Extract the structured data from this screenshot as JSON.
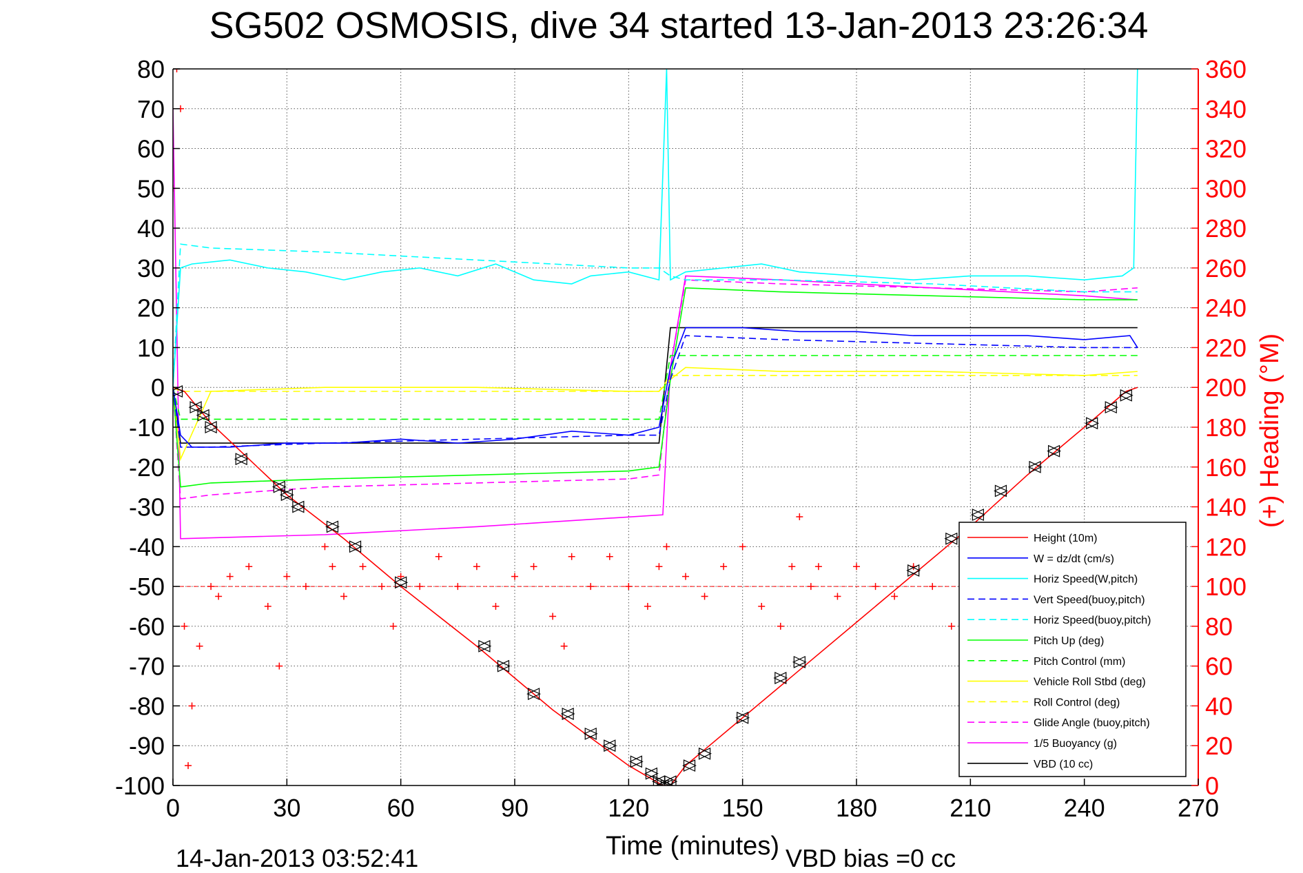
{
  "chart_data": {
    "type": "line",
    "title": "SG502 OSMOSIS, dive 34 started 13-Jan-2013 23:26:34",
    "xlabel": "Time (minutes)",
    "ylabel": "",
    "ylabel_right": "(+) Heading (°M)",
    "footer_left": "14-Jan-2013 03:52:41",
    "footer_right": "VBD bias =0 cc",
    "xlim": [
      0,
      270
    ],
    "ylim": [
      -100,
      80
    ],
    "ylim_right": [
      0,
      360
    ],
    "xticks": [
      "0",
      "30",
      "60",
      "90",
      "120",
      "150",
      "180",
      "210",
      "240",
      "270"
    ],
    "yticks": [
      "-100",
      "-90",
      "-80",
      "-70",
      "-60",
      "-50",
      "-40",
      "-30",
      "-20",
      "-10",
      "0",
      "10",
      "20",
      "30",
      "40",
      "50",
      "60",
      "70",
      "80"
    ],
    "yticks_right": [
      "0",
      "20",
      "40",
      "60",
      "80",
      "100",
      "120",
      "140",
      "160",
      "180",
      "200",
      "220",
      "240",
      "260",
      "280",
      "300",
      "320",
      "340",
      "360"
    ],
    "grid": true,
    "legend_position": "bottom-right",
    "colors": {
      "height": "#ff0000",
      "w": "#0000ff",
      "horiz_speed": "#00ffff",
      "vert_speed": "#0000ff",
      "pitch": "#00ff00",
      "roll": "#ffff00",
      "glide": "#ff00ff",
      "buoyancy": "#ff00ff",
      "vbd": "#000000",
      "heading": "#ff0000",
      "right_axis": "#ff0000"
    },
    "series": [
      {
        "name": "Height (10m)",
        "color": "#ff0000",
        "style": "solid",
        "x": [
          0,
          3,
          10,
          20,
          30,
          45,
          60,
          80,
          100,
          120,
          129,
          131,
          135,
          150,
          165,
          180,
          195,
          210,
          225,
          240,
          251,
          254
        ],
        "y": [
          0,
          -1,
          -9,
          -18,
          -27,
          -38,
          -50,
          -65,
          -81,
          -95,
          -100,
          -100,
          -95,
          -83,
          -71,
          -59,
          -47,
          -35,
          -22,
          -10,
          -1,
          0
        ]
      },
      {
        "name": "W = dz/dt (cm/s)",
        "color": "#0000ff",
        "style": "solid",
        "x": [
          0,
          2,
          5,
          15,
          30,
          45,
          60,
          75,
          90,
          105,
          120,
          128,
          131,
          135,
          150,
          165,
          180,
          195,
          210,
          225,
          240,
          252,
          254
        ],
        "y": [
          0,
          -12,
          -15,
          -15,
          -14,
          -14,
          -13,
          -14,
          -13,
          -11,
          -12,
          -10,
          5,
          15,
          15,
          14,
          14,
          13,
          13,
          13,
          12,
          13,
          10
        ]
      },
      {
        "name": "Horiz Speed(W,pitch)",
        "color": "#00ffff",
        "style": "solid",
        "x": [
          0,
          2,
          5,
          15,
          25,
          35,
          45,
          55,
          65,
          75,
          85,
          95,
          105,
          110,
          120,
          128,
          130,
          131,
          135,
          145,
          155,
          165,
          180,
          195,
          210,
          225,
          240,
          250,
          253,
          254
        ],
        "y": [
          0,
          30,
          31,
          32,
          30,
          29,
          27,
          29,
          30,
          28,
          31,
          27,
          26,
          28,
          29,
          27,
          80,
          27,
          29,
          30,
          31,
          29,
          28,
          27,
          28,
          28,
          27,
          28,
          30,
          80
        ]
      },
      {
        "name": "Vert Speed(buoy,pitch)",
        "color": "#0000ff",
        "style": "dashed",
        "x": [
          0,
          2,
          10,
          40,
          80,
          120,
          128,
          131,
          135,
          160,
          200,
          240,
          254
        ],
        "y": [
          0,
          -15,
          -15,
          -14,
          -13,
          -12,
          -12,
          2,
          13,
          12,
          11,
          10,
          10
        ]
      },
      {
        "name": "Horiz Speed(buoy,pitch)",
        "color": "#00ffff",
        "style": "dashed",
        "x": [
          0,
          2,
          10,
          40,
          80,
          120,
          128,
          131,
          135,
          160,
          200,
          240,
          254
        ],
        "y": [
          0,
          36,
          35,
          34,
          32,
          30,
          30,
          28,
          27,
          27,
          26,
          24,
          24
        ]
      },
      {
        "name": "Pitch Up (deg)",
        "color": "#00ff00",
        "style": "solid",
        "x": [
          0,
          2,
          10,
          40,
          80,
          120,
          128,
          131,
          135,
          160,
          200,
          240,
          254
        ],
        "y": [
          0,
          -25,
          -24,
          -23,
          -22,
          -21,
          -20,
          2,
          25,
          24,
          23,
          22,
          22
        ]
      },
      {
        "name": "Pitch Control (mm)",
        "color": "#00ff00",
        "style": "dashed",
        "x": [
          0,
          2,
          128,
          131,
          254
        ],
        "y": [
          0,
          -8,
          -8,
          8,
          8
        ]
      },
      {
        "name": "Vehicle Roll Stbd (deg)",
        "color": "#ffff00",
        "style": "solid",
        "x": [
          0,
          2,
          10,
          40,
          80,
          120,
          128,
          131,
          135,
          160,
          200,
          240,
          254
        ],
        "y": [
          0,
          -18,
          -1,
          0,
          0,
          -1,
          -1,
          2,
          5,
          4,
          4,
          3,
          4
        ]
      },
      {
        "name": "Roll Control (deg)",
        "color": "#ffff00",
        "style": "dashed",
        "x": [
          0,
          2,
          128,
          131,
          254
        ],
        "y": [
          0,
          -1,
          -1,
          3,
          3
        ]
      },
      {
        "name": "Glide Angle (buoy,pitch)",
        "color": "#ff00ff",
        "style": "dashed",
        "x": [
          0,
          2,
          10,
          40,
          80,
          120,
          128,
          131,
          135,
          160,
          200,
          240,
          254
        ],
        "y": [
          0,
          -28,
          -27,
          -25,
          -24,
          -23,
          -22,
          5,
          27,
          26,
          25,
          24,
          25
        ]
      },
      {
        "name": "1/5 Buoyancy (g)",
        "color": "#ff00ff",
        "style": "solid",
        "x": [
          0,
          2,
          40,
          80,
          129,
          131,
          135,
          160,
          200,
          240,
          254
        ],
        "y": [
          70,
          -38,
          -37,
          -35,
          -32,
          5,
          28,
          27,
          25,
          23,
          22
        ]
      },
      {
        "name": "VBD (10 cc)",
        "color": "#000000",
        "style": "solid",
        "x": [
          0,
          2,
          128,
          131,
          254
        ],
        "y": [
          0,
          -14,
          -14,
          15,
          15
        ]
      }
    ],
    "heading": {
      "name": "Heading (°M)",
      "color": "#ff0000",
      "style": "plus",
      "axis": "right",
      "x": [
        0,
        1,
        2,
        3,
        4,
        5,
        7,
        10,
        12,
        15,
        20,
        25,
        28,
        30,
        35,
        40,
        42,
        45,
        50,
        55,
        58,
        60,
        65,
        70,
        75,
        80,
        85,
        90,
        95,
        100,
        103,
        105,
        110,
        115,
        120,
        125,
        128,
        130,
        135,
        140,
        145,
        150,
        155,
        160,
        163,
        165,
        168,
        170,
        175,
        180,
        185,
        190,
        195,
        200,
        205,
        210,
        215,
        220,
        225,
        230,
        235,
        240,
        245,
        250,
        254
      ],
      "y": [
        300,
        360,
        340,
        80,
        10,
        40,
        70,
        100,
        95,
        105,
        110,
        90,
        60,
        105,
        100,
        120,
        110,
        95,
        110,
        100,
        80,
        105,
        100,
        115,
        100,
        110,
        90,
        105,
        110,
        85,
        70,
        115,
        100,
        115,
        100,
        90,
        110,
        120,
        105,
        95,
        110,
        120,
        90,
        80,
        110,
        135,
        100,
        110,
        95,
        110,
        100,
        95,
        110,
        100,
        80,
        95,
        100,
        110,
        105,
        100,
        95,
        105,
        100,
        100,
        100
      ]
    },
    "heading_ref": {
      "y": 100
    },
    "markers": {
      "name": "Height markers",
      "style": "triangle",
      "x": [
        1,
        6,
        8,
        10,
        18,
        28,
        30,
        33,
        42,
        48,
        60,
        82,
        87,
        95,
        104,
        110,
        115,
        122,
        126,
        128,
        129,
        130,
        131,
        136,
        140,
        150,
        160,
        165,
        195,
        205,
        212,
        218,
        227,
        232,
        242,
        247,
        251
      ],
      "y": [
        -1,
        -5,
        -7,
        -10,
        -18,
        -25,
        -27,
        -30,
        -35,
        -40,
        -49,
        -65,
        -70,
        -77,
        -82,
        -87,
        -90,
        -94,
        -97,
        -99,
        -100,
        -100,
        -99,
        -95,
        -92,
        -83,
        -73,
        -69,
        -46,
        -38,
        -32,
        -26,
        -20,
        -16,
        -9,
        -5,
        -2
      ]
    }
  }
}
